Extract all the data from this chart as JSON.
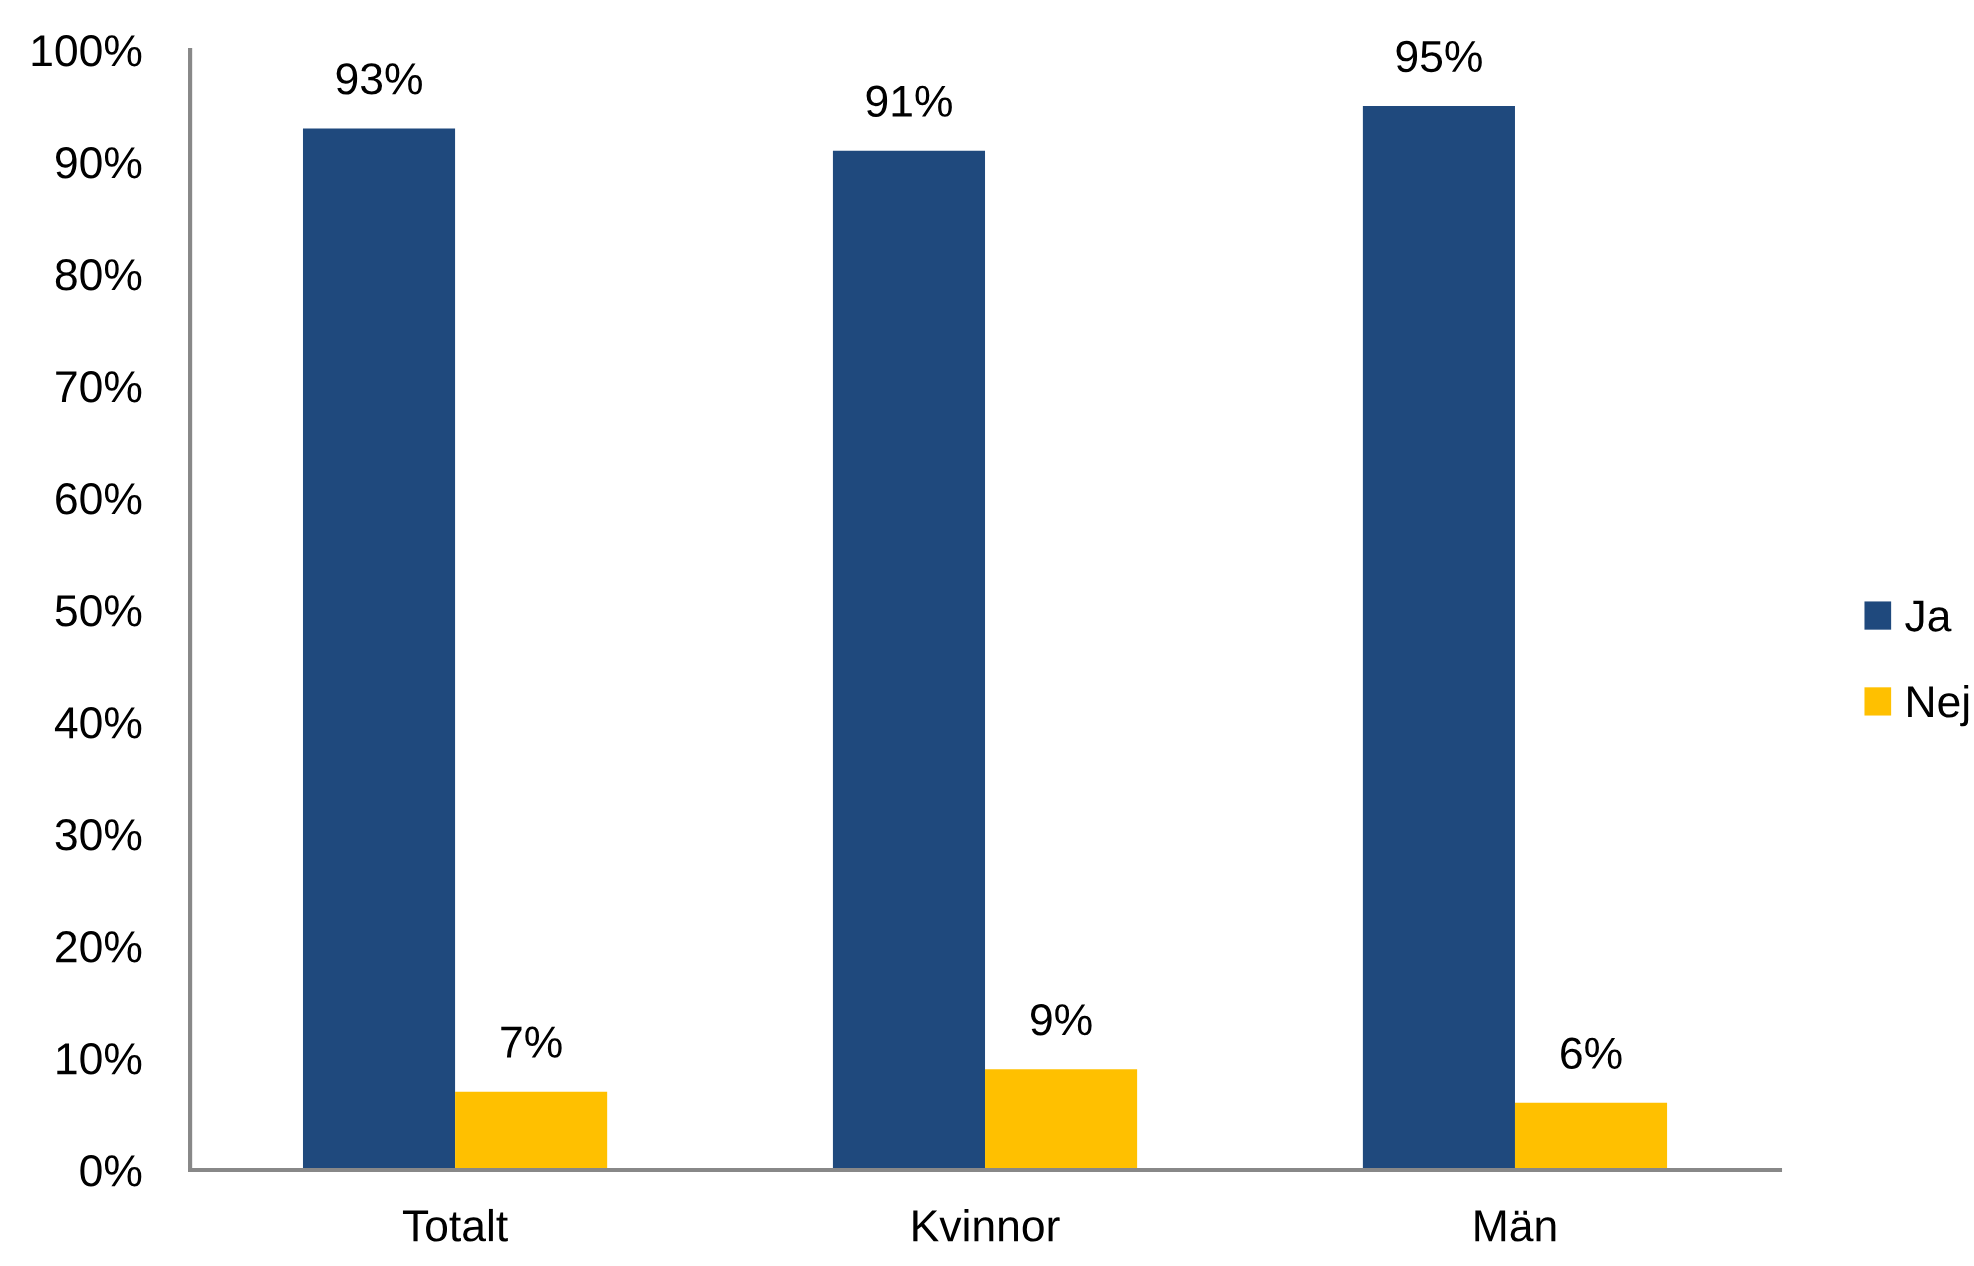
{
  "chart_data": {
    "type": "bar",
    "categories": [
      "Totalt",
      "Kvinnor",
      "Män"
    ],
    "series": [
      {
        "name": "Ja",
        "color": "#1f497d",
        "values": [
          93,
          91,
          95
        ],
        "value_labels": [
          "93%",
          "91%",
          "95%"
        ]
      },
      {
        "name": "Nej",
        "color": "#ffc000",
        "values": [
          7,
          9,
          6
        ],
        "value_labels": [
          "7%",
          "9%",
          "6%"
        ]
      }
    ],
    "ylim": [
      0,
      100
    ],
    "yticks": [
      {
        "value": 0,
        "label": "0%"
      },
      {
        "value": 10,
        "label": "10%"
      },
      {
        "value": 20,
        "label": "20%"
      },
      {
        "value": 30,
        "label": "30%"
      },
      {
        "value": 40,
        "label": "40%"
      },
      {
        "value": 50,
        "label": "50%"
      },
      {
        "value": 60,
        "label": "60%"
      },
      {
        "value": 70,
        "label": "70%"
      },
      {
        "value": 80,
        "label": "80%"
      },
      {
        "value": 90,
        "label": "90%"
      },
      {
        "value": 100,
        "label": "100%"
      }
    ],
    "legend": "right",
    "grid": false
  }
}
